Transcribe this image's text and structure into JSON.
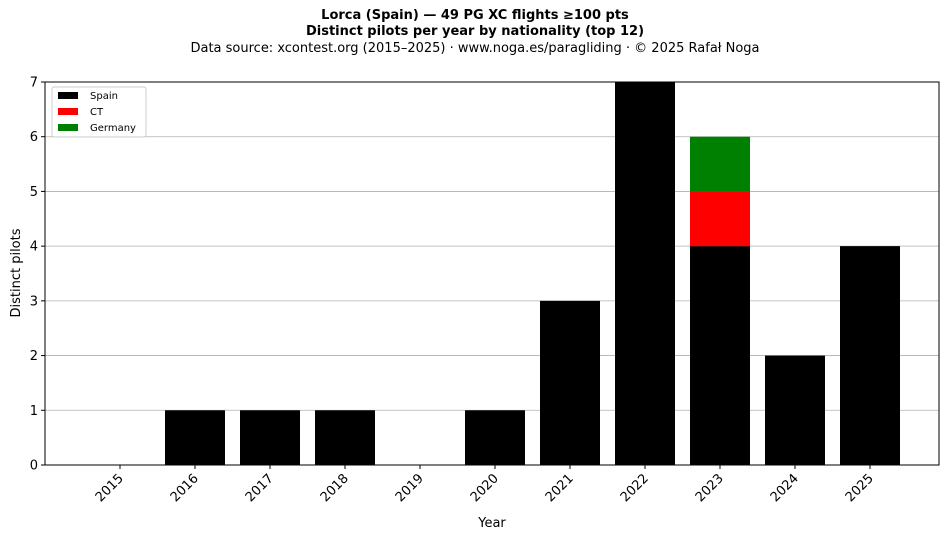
{
  "chart_data": {
    "type": "bar",
    "stacked": true,
    "title": "Lorca (Spain)  —  49 PG XC flights ≥100 pts",
    "subtitle": "Distinct pilots per year by nationality (top 12)",
    "source_line": "Data source: xcontest.org (2015–2025)  ·  www.noga.es/paragliding  ·  © 2025 Rafał Noga",
    "xlabel": "Year",
    "ylabel": "Distinct pilots",
    "categories": [
      "2015",
      "2016",
      "2017",
      "2018",
      "2019",
      "2020",
      "2021",
      "2022",
      "2023",
      "2024",
      "2025"
    ],
    "series": [
      {
        "name": "Spain",
        "color": "#000000",
        "values": [
          0,
          1,
          1,
          1,
          0,
          1,
          3,
          7,
          4,
          2,
          4
        ]
      },
      {
        "name": "CT",
        "color": "#ff0000",
        "values": [
          0,
          0,
          0,
          0,
          0,
          0,
          0,
          0,
          1,
          0,
          0
        ]
      },
      {
        "name": "Germany",
        "color": "#008000",
        "values": [
          0,
          0,
          0,
          0,
          0,
          0,
          0,
          0,
          1,
          0,
          0
        ]
      }
    ],
    "ylim": [
      0,
      7
    ],
    "yticks": [
      0,
      1,
      2,
      3,
      4,
      5,
      6,
      7
    ],
    "grid": "horizontal",
    "legend_position": "top-left"
  }
}
